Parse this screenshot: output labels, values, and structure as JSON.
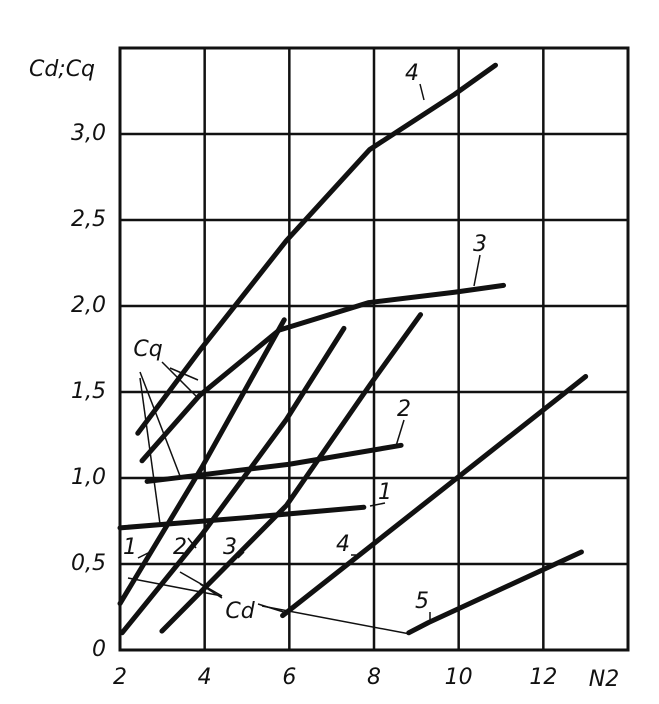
{
  "chart_data": {
    "type": "line",
    "y_label": "Cd;Cq",
    "x_label": "N2",
    "xlim": [
      2,
      14
    ],
    "ylim": [
      0,
      3.5
    ],
    "xticks": [
      2,
      4,
      6,
      8,
      10,
      12
    ],
    "yticks": [
      0,
      {
        "value": 0.5,
        "label": "0,5"
      },
      {
        "value": 1.0,
        "label": "1,0"
      },
      {
        "value": 1.5,
        "label": "1,5"
      },
      {
        "value": 2.0,
        "label": "2,0"
      },
      {
        "value": 2.5,
        "label": "2,5"
      },
      {
        "value": 3.0,
        "label": "3,0"
      }
    ],
    "grid": true,
    "annotations": [
      "Cq",
      "Cd"
    ],
    "series": [
      {
        "name": "1",
        "color": "#111111",
        "x": [
          2,
          5,
          7.76
        ],
        "values": [
          0.71,
          0.77,
          0.83
        ]
      },
      {
        "name": "2",
        "color": "#111111",
        "x": [
          2.64,
          6,
          8.64
        ],
        "values": [
          0.98,
          1.08,
          1.19
        ]
      },
      {
        "name": "3",
        "color": "#111111",
        "x": [
          2.52,
          3.88,
          5.76,
          7.88,
          9.9,
          11.06
        ],
        "values": [
          1.1,
          1.48,
          1.86,
          2.02,
          2.08,
          2.12
        ]
      },
      {
        "name": "4",
        "color": "#111111",
        "x": [
          2.42,
          3.88,
          5.93,
          7.9,
          9.9,
          10.87
        ],
        "values": [
          1.26,
          1.74,
          2.38,
          2.91,
          3.23,
          3.4
        ]
      },
      {
        "name": "1",
        "color": "#111111",
        "x": [
          2,
          3.93,
          5.88
        ],
        "values": [
          0.27,
          1.06,
          1.92
        ]
      },
      {
        "name": "2",
        "color": "#111111",
        "x": [
          2.05,
          3.93,
          5.93,
          7.29
        ],
        "values": [
          0.1,
          0.67,
          1.34,
          1.87
        ]
      },
      {
        "name": "3",
        "color": "#111111",
        "x": [
          2.99,
          5.93,
          7.9,
          9.1
        ],
        "values": [
          0.11,
          0.84,
          1.54,
          1.95
        ]
      },
      {
        "name": "4",
        "color": "#111111",
        "x": [
          5.84,
          13.0
        ],
        "values": [
          0.2,
          1.59
        ]
      },
      {
        "name": "5",
        "color": "#111111",
        "x": [
          8.82,
          9.29,
          12.9
        ],
        "values": [
          0.1,
          0.16,
          0.57
        ]
      }
    ]
  }
}
